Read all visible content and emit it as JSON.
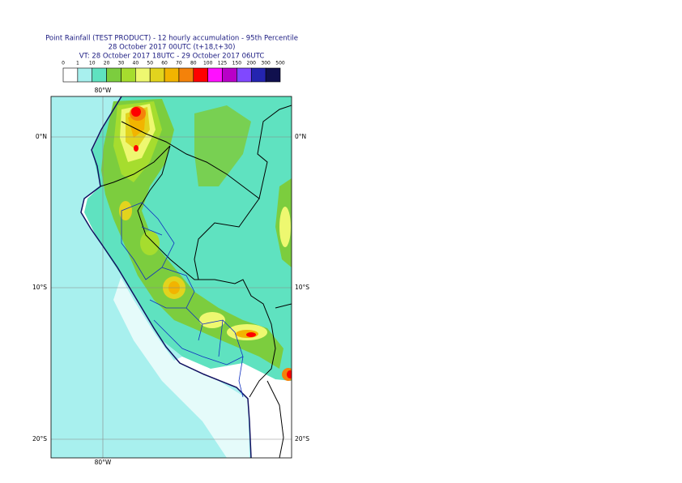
{
  "header": {
    "title": "Point Rainfall (TEST PRODUCT) - 12 hourly accumulation - 95th Percentile",
    "line2": "28 October 2017 00UTC (t+18,t+30)",
    "line3": "VT: 28 October 2017 18UTC - 29 October 2017 06UTC"
  },
  "legend": {
    "labels": [
      "0",
      "1",
      "10",
      "20",
      "30",
      "40",
      "50",
      "60",
      "70",
      "80",
      "100",
      "125",
      "150",
      "200",
      "300",
      "500"
    ],
    "colors": [
      "#ffffff",
      "#a8f0ee",
      "#5fe2c0",
      "#7ccd3e",
      "#a6dd2e",
      "#eef870",
      "#e2d41e",
      "#f2b400",
      "#f4820a",
      "#ff0000",
      "#ff10ff",
      "#b800c8",
      "#8048ff",
      "#2424b0",
      "#10104e"
    ]
  },
  "map": {
    "lon_labels": [
      "80°W"
    ],
    "lat_labels": [
      "0°N",
      "10°S",
      "20°S"
    ]
  }
}
